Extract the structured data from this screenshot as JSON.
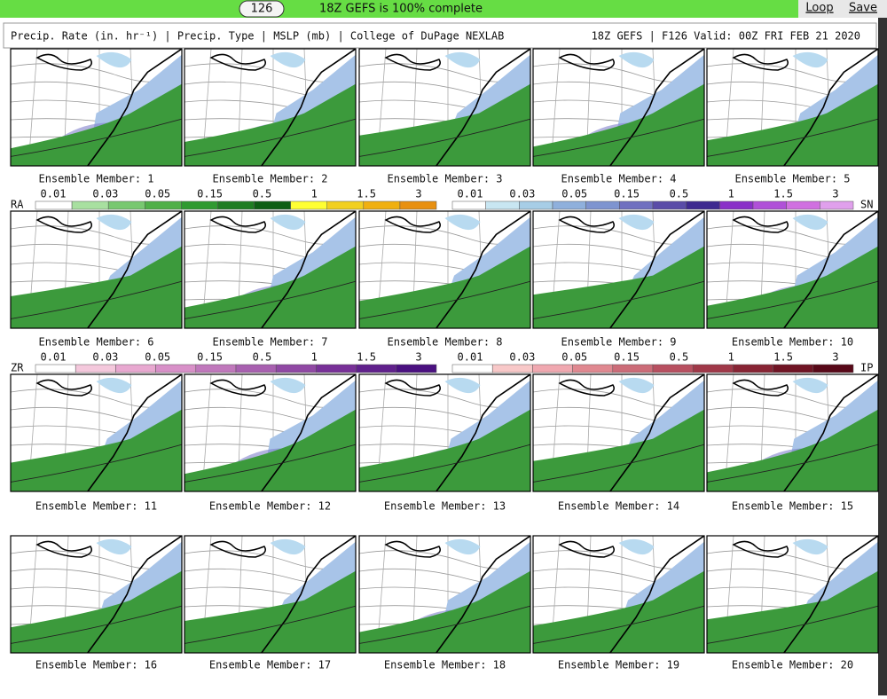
{
  "toolbar": {
    "frame": "126",
    "status": "18Z GEFS is 100% complete",
    "links": [
      "Loop",
      "Save"
    ]
  },
  "header": {
    "left": "Precip. Rate (in. hr⁻¹) | Precip. Type | MSLP (mb) | College of DuPage NEXLAB",
    "right": "18Z GEFS | F126 Valid: 00Z FRI FEB 21 2020"
  },
  "panels": [
    "Ensemble Member: 1",
    "Ensemble Member: 2",
    "Ensemble Member: 3",
    "Ensemble Member: 4",
    "Ensemble Member: 5",
    "Ensemble Member: 6",
    "Ensemble Member: 7",
    "Ensemble Member: 8",
    "Ensemble Member: 9",
    "Ensemble Member: 10",
    "Ensemble Member: 11",
    "Ensemble Member: 12",
    "Ensemble Member: 13",
    "Ensemble Member: 14",
    "Ensemble Member: 15",
    "Ensemble Member: 16",
    "Ensemble Member: 17",
    "Ensemble Member: 18",
    "Ensemble Member: 19",
    "Ensemble Member: 20"
  ],
  "legends": [
    {
      "label": "RA",
      "ticks": [
        "0.01",
        "0.03",
        "0.05",
        "0.15",
        "0.5",
        "1",
        "1.5",
        "3"
      ],
      "colors": [
        "#ffffff",
        "#a8e0a0",
        "#78c870",
        "#50b048",
        "#2f9a30",
        "#1f7d22",
        "#0e5e14",
        "#ffff33",
        "#f2d020",
        "#f0b010",
        "#e89010"
      ]
    },
    {
      "label": "SN",
      "ticks": [
        "0.01",
        "0.03",
        "0.05",
        "0.15",
        "0.5",
        "1",
        "1.5",
        "3"
      ],
      "colors": [
        "#ffffff",
        "#c8e6f2",
        "#a7cde6",
        "#8fb0dc",
        "#7e94d0",
        "#7070c0",
        "#5a4ca8",
        "#3f2a90",
        "#8a30c8",
        "#b050d8",
        "#d070e0",
        "#e0a0ec"
      ]
    },
    {
      "label": "ZR",
      "ticks": [
        "0.01",
        "0.03",
        "0.05",
        "0.15",
        "0.5",
        "1",
        "1.5",
        "3"
      ],
      "colors": [
        "#ffffff",
        "#f4c8dc",
        "#e8a8d0",
        "#d890c8",
        "#c078bc",
        "#a860b0",
        "#9048a4",
        "#783098",
        "#60208c",
        "#4a1080"
      ]
    },
    {
      "label": "IP",
      "ticks": [
        "0.01",
        "0.03",
        "0.05",
        "0.15",
        "0.5",
        "1",
        "1.5",
        "3"
      ],
      "colors": [
        "#ffffff",
        "#f8c8c8",
        "#f0a8b0",
        "#e08890",
        "#cc6c78",
        "#b85060",
        "#a03848",
        "#882434",
        "#701424",
        "#580818"
      ]
    }
  ]
}
